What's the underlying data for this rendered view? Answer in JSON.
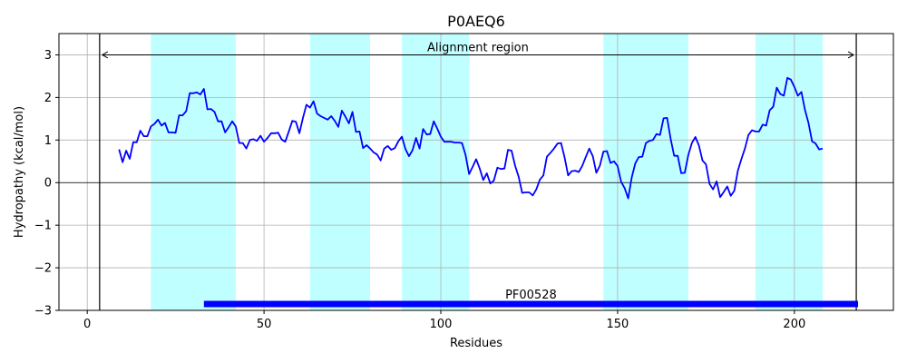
{
  "chart_data": {
    "type": "line",
    "title": "P0AEQ6",
    "xlabel": "Residues",
    "ylabel": "Hydropathy (kcal/mol)",
    "xlim": [
      -8,
      228
    ],
    "ylim": [
      -3,
      3.5
    ],
    "xticks": [
      0,
      50,
      100,
      150,
      200
    ],
    "yticks": [
      -3,
      -2,
      -1,
      0,
      1,
      2,
      3
    ],
    "ytick_labels": [
      "−3",
      "−2",
      "−1",
      "0",
      "1",
      "2",
      "3"
    ],
    "grid": true,
    "line_color": "#0000ff",
    "band_color": "#c0ffff",
    "domain_color": "#0000ff",
    "series": [
      {
        "x": [
          9,
          10,
          11,
          12,
          13,
          14,
          15,
          16,
          17,
          18,
          19,
          20,
          21,
          22,
          23,
          24,
          25,
          26,
          27,
          28,
          29,
          30,
          31,
          32,
          33,
          34,
          35,
          36,
          37,
          38,
          39,
          40,
          41,
          42,
          43,
          44,
          45,
          46,
          47,
          48,
          49,
          50,
          51,
          52,
          53,
          54,
          55,
          56,
          57,
          58,
          59,
          60,
          61,
          62,
          63,
          64,
          65,
          66,
          67,
          68,
          69,
          70,
          71,
          72,
          73,
          74,
          75,
          76,
          77,
          78,
          79,
          80,
          81,
          82,
          83,
          84,
          85,
          86,
          87,
          88,
          89,
          90,
          91,
          92,
          93,
          94,
          95,
          96,
          97,
          98,
          99,
          100,
          101,
          102,
          103,
          104,
          105,
          106,
          107,
          108,
          109,
          110,
          111,
          112,
          113,
          114,
          115,
          116,
          117,
          118,
          119,
          120,
          121,
          122,
          123,
          124,
          125,
          126,
          127,
          128,
          129,
          130,
          131,
          132,
          133,
          134,
          135,
          136,
          137,
          138,
          139,
          140,
          141,
          142,
          143,
          144,
          145,
          146,
          147,
          148,
          149,
          150,
          151,
          152,
          153,
          154,
          155,
          156,
          157,
          158,
          159,
          160,
          161,
          162,
          163,
          164,
          165,
          166,
          167,
          168,
          169,
          170,
          171,
          172,
          173,
          174,
          175,
          176,
          177,
          178,
          179,
          180,
          181,
          182,
          183,
          184,
          185,
          186,
          187,
          188,
          189,
          190,
          191,
          192,
          193,
          194,
          195,
          196,
          197,
          198,
          199,
          200,
          201,
          202,
          203,
          204,
          205,
          206,
          207,
          208
        ],
        "values": [
          0.78,
          0.48,
          0.75,
          0.56,
          0.95,
          0.95,
          1.22,
          1.09,
          1.09,
          1.32,
          1.38,
          1.48,
          1.34,
          1.4,
          1.18,
          1.18,
          1.17,
          1.58,
          1.58,
          1.68,
          2.1,
          2.1,
          2.12,
          2.07,
          2.2,
          1.72,
          1.73,
          1.66,
          1.44,
          1.44,
          1.18,
          1.3,
          1.44,
          1.32,
          0.93,
          0.93,
          0.8,
          1.0,
          1.02,
          0.98,
          1.1,
          0.96,
          1.05,
          1.16,
          1.16,
          1.17,
          1.01,
          0.96,
          1.2,
          1.45,
          1.43,
          1.16,
          1.52,
          1.83,
          1.76,
          1.91,
          1.62,
          1.56,
          1.52,
          1.48,
          1.56,
          1.45,
          1.31,
          1.69,
          1.55,
          1.39,
          1.66,
          1.19,
          1.2,
          0.81,
          0.88,
          0.8,
          0.71,
          0.66,
          0.52,
          0.8,
          0.86,
          0.77,
          0.81,
          0.97,
          1.08,
          0.79,
          0.62,
          0.76,
          1.05,
          0.8,
          1.26,
          1.13,
          1.14,
          1.44,
          1.27,
          1.08,
          0.96,
          0.96,
          0.96,
          0.94,
          0.94,
          0.93,
          0.65,
          0.2,
          0.37,
          0.55,
          0.33,
          0.06,
          0.22,
          -0.02,
          0.05,
          0.35,
          0.32,
          0.33,
          0.77,
          0.75,
          0.4,
          0.14,
          -0.24,
          -0.23,
          -0.23,
          -0.3,
          -0.16,
          0.07,
          0.17,
          0.61,
          0.7,
          0.8,
          0.92,
          0.93,
          0.59,
          0.17,
          0.27,
          0.28,
          0.25,
          0.39,
          0.6,
          0.8,
          0.62,
          0.23,
          0.4,
          0.73,
          0.74,
          0.46,
          0.5,
          0.39,
          0.02,
          -0.13,
          -0.37,
          0.12,
          0.45,
          0.6,
          0.61,
          0.93,
          0.98,
          1.0,
          1.14,
          1.12,
          1.51,
          1.52,
          1.03,
          0.63,
          0.63,
          0.22,
          0.23,
          0.65,
          0.93,
          1.07,
          0.87,
          0.52,
          0.43,
          -0.03,
          -0.16,
          0.03,
          -0.34,
          -0.22,
          -0.09,
          -0.31,
          -0.19,
          0.28,
          0.55,
          0.8,
          1.12,
          1.23,
          1.2,
          1.2,
          1.36,
          1.34,
          1.7,
          1.78,
          2.23,
          2.08,
          2.04,
          2.46,
          2.42,
          2.25,
          2.04,
          2.13,
          1.71,
          1.4,
          0.97,
          0.92,
          0.78,
          0.8
        ]
      }
    ],
    "hline": 0,
    "bands": [
      [
        18,
        42
      ],
      [
        63,
        80
      ],
      [
        89,
        108
      ],
      [
        146,
        170
      ],
      [
        189,
        208
      ]
    ],
    "alignment_region": {
      "label": "Alignment region",
      "x_start": 3.5,
      "x_end": 217.5,
      "y": 3.0
    },
    "domain": {
      "label": "PF00528",
      "x_start": 33,
      "x_end": 218,
      "y": -2.85
    }
  }
}
